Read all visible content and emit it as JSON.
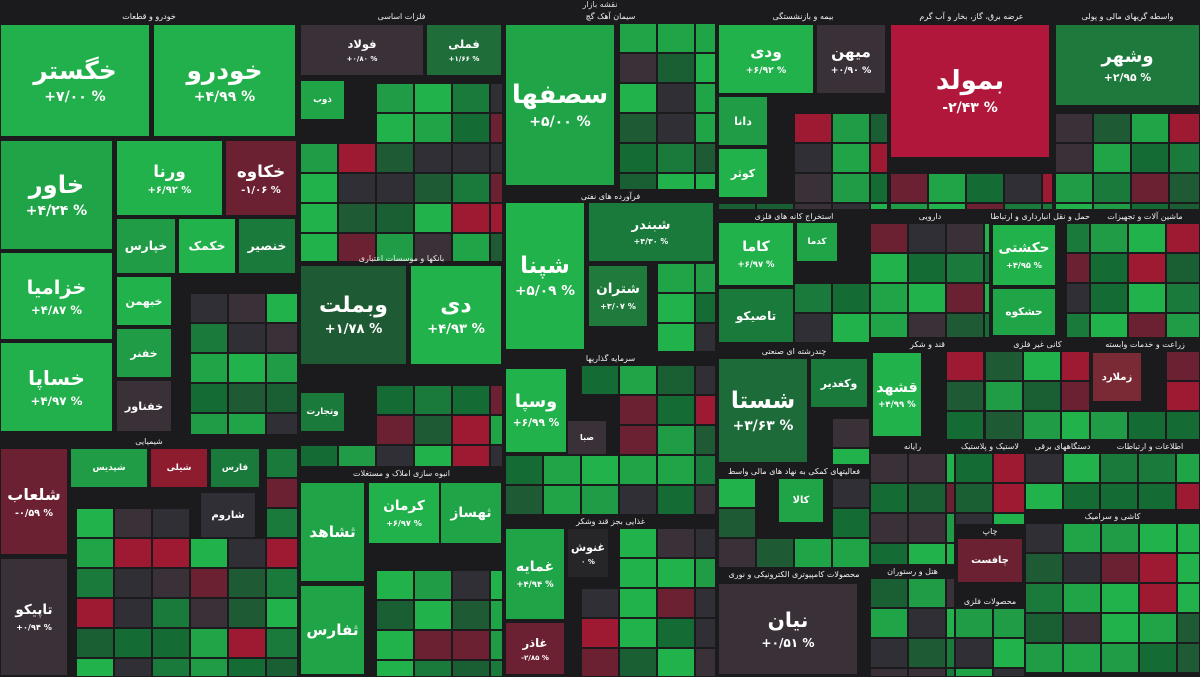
{
  "title": "نقشه بازار",
  "sectors": [
    {
      "name": "خودرو و قطعات",
      "tiles": [
        {
          "name": "خگستر",
          "change": "+۷/۰۰ %",
          "color": "#21b04b"
        },
        {
          "name": "خودرو",
          "change": "+۴/۹۹ %",
          "color": "#21b04b"
        },
        {
          "name": "خاور",
          "change": "+۴/۲۴ %",
          "color": "#1fa548"
        },
        {
          "name": "ورنا",
          "change": "+۶/۹۲ %",
          "color": "#22b24c"
        },
        {
          "name": "خکاوه",
          "change": "-۱/۰۶ %",
          "color": "#6b2131"
        },
        {
          "name": "خزامیا",
          "change": "+۴/۸۷ %",
          "color": "#21b04b"
        },
        {
          "name": "خساپا",
          "change": "+۴/۹۷ %",
          "color": "#21b04b"
        },
        {
          "name": "خپارس",
          "color": "#1f9c45"
        },
        {
          "name": "خکمک",
          "color": "#22b24c"
        },
        {
          "name": "خنصیر",
          "color": "#1a7a3c"
        },
        {
          "name": "خبهمن",
          "color": "#22b24c"
        },
        {
          "name": "خفنر",
          "color": "#1f9c45"
        },
        {
          "name": "خفناور",
          "color": "#3a3038"
        }
      ]
    },
    {
      "name": "شیمیایی",
      "tiles": [
        {
          "name": "شلعاب",
          "change": "-۰/۵۹ %",
          "color": "#6b2131"
        },
        {
          "name": "تاپیکو",
          "change": "+۰/۹۴ %",
          "color": "#3a3038"
        },
        {
          "name": "شپدیس",
          "color": "#1f9c45"
        },
        {
          "name": "شیلی",
          "color": "#8c1c2e"
        },
        {
          "name": "فارس",
          "color": "#1a7a3c"
        },
        {
          "name": "شاروم",
          "color": "#2f2f35"
        }
      ]
    },
    {
      "name": "فلزات اساسی",
      "tiles": [
        {
          "name": "فولاد",
          "change": "+۰/۸۰ %",
          "color": "#3a3038"
        },
        {
          "name": "فملی",
          "change": "+۱/۶۶ %",
          "color": "#1f6e3a"
        },
        {
          "name": "ذوب",
          "color": "#1fa548"
        }
      ]
    },
    {
      "name": "بانکها و موسسات اعتباری",
      "tiles": [
        {
          "name": "وبملت",
          "change": "+۱/۷۸ %",
          "color": "#1e5a34"
        },
        {
          "name": "دی",
          "change": "+۴/۹۳ %",
          "color": "#22b24c"
        },
        {
          "name": "وتجارت",
          "color": "#1a7a3c"
        }
      ]
    },
    {
      "name": "انبوه سازی املاک و مستغلات",
      "tiles": [
        {
          "name": "ثشاهد",
          "color": "#1fa548"
        },
        {
          "name": "کرمان",
          "change": "+۶/۹۷ %",
          "color": "#22b24c"
        },
        {
          "name": "ثهساز",
          "color": "#1fa548"
        },
        {
          "name": "ثفارس",
          "color": "#1fa548"
        }
      ]
    },
    {
      "name": "سیمان آهک گچ",
      "tiles": [
        {
          "name": "سصفها",
          "change": "+۵/۰۰ %",
          "color": "#1fa548"
        }
      ]
    },
    {
      "name": "فرآورده های نفتی",
      "tiles": [
        {
          "name": "شپنا",
          "change": "+۵/۰۹ %",
          "color": "#22b24c"
        },
        {
          "name": "شبندر",
          "change": "+۴/۳۰ %",
          "color": "#1a7a3c"
        },
        {
          "name": "شتران",
          "change": "+۳/۰۷ %",
          "color": "#1f7a3c"
        }
      ]
    },
    {
      "name": "سرمایه گذاریها",
      "tiles": [
        {
          "name": "وسپا",
          "change": "+۶/۹۹ %",
          "color": "#22b24c"
        },
        {
          "name": "صبا",
          "color": "#3a3038"
        }
      ]
    },
    {
      "name": "غذایی بجز قند وشکر",
      "tiles": [
        {
          "name": "غمایه",
          "change": "+۴/۹۴ %",
          "color": "#1fa548"
        },
        {
          "name": "غاذر",
          "change": "-۲/۸۵ %",
          "color": "#6b2131"
        },
        {
          "name": "غنوش",
          "change": "۰ %",
          "color": "#262629"
        }
      ]
    },
    {
      "name": "بیمه و بازنشستگی",
      "tiles": [
        {
          "name": "ودی",
          "change": "+۶/۹۲ %",
          "color": "#22b24c"
        },
        {
          "name": "میهن",
          "change": "+۰/۹۰ %",
          "color": "#3a3038"
        },
        {
          "name": "دانا",
          "color": "#1f9c45"
        },
        {
          "name": "کوثر",
          "color": "#22b24c"
        }
      ]
    },
    {
      "name": "عرضه برق، گاز، بخار و آب گرم",
      "tiles": [
        {
          "name": "بمولد",
          "change": "-۲/۴۳ %",
          "color": "#b0173a"
        }
      ]
    },
    {
      "name": "واسطه گریهای مالی و پولی",
      "tiles": [
        {
          "name": "وشهر",
          "change": "+۲/۹۵ %",
          "color": "#1e7a3c"
        }
      ]
    },
    {
      "name": "استخراج کانه های فلزی",
      "tiles": [
        {
          "name": "کاما",
          "change": "+۶/۹۷ %",
          "color": "#22b24c"
        },
        {
          "name": "تاصیکو",
          "color": "#1a7a3c"
        },
        {
          "name": "کدما",
          "color": "#1fa548"
        }
      ]
    },
    {
      "name": "چندرشته ای صنعتی",
      "tiles": [
        {
          "name": "شستا",
          "change": "+۳/۶۳ %",
          "color": "#1e6b3a"
        },
        {
          "name": "وکغدیر",
          "color": "#1a7a3c"
        }
      ]
    },
    {
      "name": "فعالیتهای کمکی به نهاد های مالی واسط",
      "tiles": [
        {
          "name": "کالا",
          "color": "#1fa548"
        }
      ]
    },
    {
      "name": "محصولات کامپیوتری الکترونیکی و نوری",
      "tiles": [
        {
          "name": "نیان",
          "change": "+۰/۵۱ %",
          "color": "#3a3038"
        }
      ]
    },
    {
      "name": "دارویی",
      "tiles": []
    },
    {
      "name": "حمل و نقل انبارداری و ارتباطات",
      "tiles": [
        {
          "name": "حکشتی",
          "change": "+۴/۹۵ %",
          "color": "#22b24c"
        },
        {
          "name": "حشکوه",
          "color": "#1fa548"
        }
      ]
    },
    {
      "name": "ماشین آلات و تجهیزات",
      "tiles": []
    },
    {
      "name": "قند و شکر",
      "tiles": [
        {
          "name": "قشهد",
          "change": "+۴/۹۹ %",
          "color": "#22b24c"
        }
      ]
    },
    {
      "name": "کانی غیر فلزی",
      "tiles": []
    },
    {
      "name": "زراعت و خدمات وابسته",
      "tiles": [
        {
          "name": "زملارد",
          "color": "#7a2a35"
        }
      ]
    },
    {
      "name": "رایانه",
      "tiles": []
    },
    {
      "name": "لاستیک و پلاستیک",
      "tiles": []
    },
    {
      "name": "دستگاههای برقی",
      "tiles": []
    },
    {
      "name": "اطلاعات و ارتباطات",
      "tiles": []
    },
    {
      "name": "چاپ",
      "tiles": [
        {
          "name": "چافست",
          "color": "#6b2131"
        }
      ]
    },
    {
      "name": "هتل و رستوران",
      "tiles": []
    },
    {
      "name": "محصولات فلزی",
      "tiles": []
    },
    {
      "name": "کاشی و سرامیک",
      "tiles": []
    }
  ]
}
